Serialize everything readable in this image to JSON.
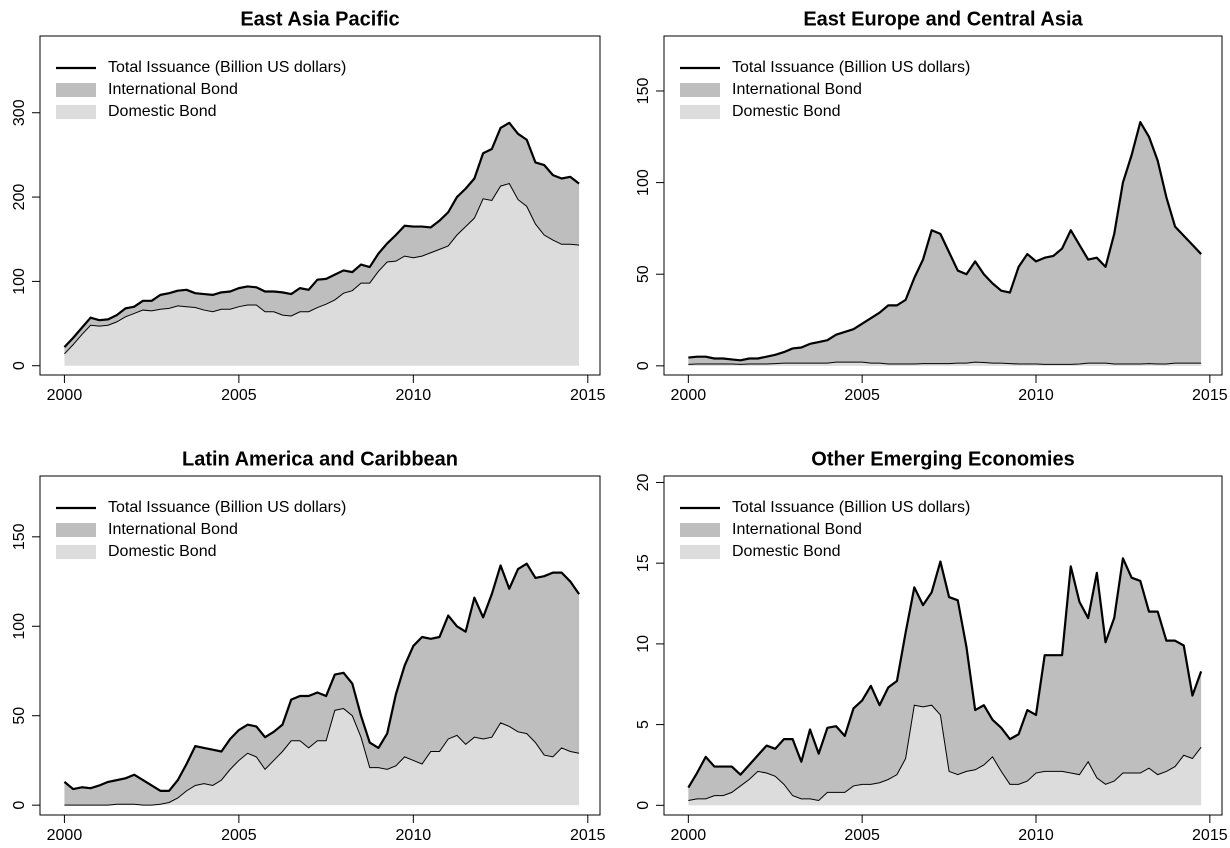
{
  "chart_data": [
    {
      "type": "area",
      "title": "East Asia Pacific",
      "legend": "topleft",
      "xlim": [
        1999.3,
        2015.35
      ],
      "xticks": [
        2000,
        2005,
        2010,
        2015
      ],
      "ylim": [
        -11,
        391
      ],
      "yticks": [
        0,
        100,
        200,
        300
      ],
      "x": [
        2000,
        2000.25,
        2000.5,
        2000.75,
        2001,
        2001.25,
        2001.5,
        2001.75,
        2002,
        2002.25,
        2002.5,
        2002.75,
        2003,
        2003.25,
        2003.5,
        2003.75,
        2004,
        2004.25,
        2004.5,
        2004.75,
        2005,
        2005.25,
        2005.5,
        2005.75,
        2006,
        2006.25,
        2006.5,
        2006.75,
        2007,
        2007.25,
        2007.5,
        2007.75,
        2008,
        2008.25,
        2008.5,
        2008.75,
        2009,
        2009.25,
        2009.5,
        2009.75,
        2010,
        2010.25,
        2010.5,
        2010.75,
        2011,
        2011.25,
        2011.5,
        2011.75,
        2012,
        2012.25,
        2012.5,
        2012.75,
        2013,
        2013.25,
        2013.5,
        2013.75,
        2014,
        2014.25,
        2014.5,
        2014.75
      ],
      "series": [
        {
          "name": "Total Issuance (Billion US dollars)",
          "color": "#000000",
          "mark": "line",
          "values": [
            22,
            33,
            45,
            57,
            54,
            55,
            60,
            68,
            70,
            77,
            77,
            84,
            86,
            89,
            90,
            86,
            85,
            84,
            87,
            88,
            92,
            94,
            93,
            88,
            88,
            87,
            85,
            92,
            90,
            102,
            103,
            108,
            113,
            111,
            120,
            117,
            133,
            145,
            155,
            166,
            165,
            165,
            164,
            172,
            182,
            200,
            210,
            222,
            252,
            257,
            282,
            288,
            275,
            268,
            241,
            238,
            226,
            222,
            224,
            216
          ]
        },
        {
          "name": "International Bond",
          "color": "#bebebe",
          "mark": "area",
          "values": [
            8,
            8,
            8,
            9,
            7,
            7,
            8,
            10,
            8,
            11,
            12,
            17,
            18,
            18,
            20,
            17,
            19,
            20,
            20,
            21,
            22,
            22,
            21,
            24,
            24,
            27,
            26,
            28,
            26,
            33,
            30,
            30,
            27,
            22,
            22,
            19,
            21,
            22,
            31,
            36,
            37,
            35,
            30,
            34,
            40,
            45,
            45,
            47,
            54,
            61,
            69,
            72,
            78,
            79,
            73,
            83,
            77,
            78,
            80,
            73
          ]
        },
        {
          "name": "Domestic Bond",
          "color": "#dcdcdc",
          "mark": "area",
          "values": [
            14,
            25,
            37,
            48,
            47,
            48,
            52,
            58,
            62,
            66,
            65,
            67,
            68,
            71,
            70,
            69,
            66,
            64,
            67,
            67,
            70,
            72,
            72,
            64,
            64,
            60,
            59,
            64,
            64,
            69,
            73,
            78,
            86,
            89,
            98,
            98,
            112,
            123,
            124,
            130,
            128,
            130,
            134,
            138,
            142,
            155,
            165,
            175,
            198,
            196,
            213,
            216,
            197,
            189,
            168,
            155,
            149,
            144,
            144,
            143
          ]
        }
      ]
    },
    {
      "type": "area",
      "title": "East Europe and Central Asia",
      "legend": "topleft",
      "xlim": [
        1999.3,
        2015.35
      ],
      "xticks": [
        2000,
        2005,
        2010,
        2015
      ],
      "ylim": [
        -5,
        180
      ],
      "yticks": [
        0,
        50,
        100,
        150
      ],
      "x": [
        2000,
        2000.25,
        2000.5,
        2000.75,
        2001,
        2001.25,
        2001.5,
        2001.75,
        2002,
        2002.25,
        2002.5,
        2002.75,
        2003,
        2003.25,
        2003.5,
        2003.75,
        2004,
        2004.25,
        2004.5,
        2004.75,
        2005,
        2005.25,
        2005.5,
        2005.75,
        2006,
        2006.25,
        2006.5,
        2006.75,
        2007,
        2007.25,
        2007.5,
        2007.75,
        2008,
        2008.25,
        2008.5,
        2008.75,
        2009,
        2009.25,
        2009.5,
        2009.75,
        2010,
        2010.25,
        2010.5,
        2010.75,
        2011,
        2011.25,
        2011.5,
        2011.75,
        2012,
        2012.25,
        2012.5,
        2012.75,
        2013,
        2013.25,
        2013.5,
        2013.75,
        2014,
        2014.25,
        2014.5,
        2014.75
      ],
      "series": [
        {
          "name": "Total Issuance (Billion US dollars)",
          "color": "#000000",
          "mark": "line",
          "values": [
            4.5,
            5,
            5,
            4,
            4,
            3.5,
            3,
            4,
            4,
            5,
            6,
            7.5,
            9.5,
            10,
            12,
            13,
            14,
            17,
            18.5,
            20,
            23,
            26,
            29,
            33,
            33,
            36,
            48,
            58,
            74,
            72,
            62,
            52,
            50,
            57,
            50,
            45,
            41,
            40,
            54,
            61,
            57,
            59,
            60,
            64,
            74,
            66,
            58,
            59,
            54,
            72,
            100,
            115,
            133,
            125,
            112,
            92,
            76,
            71,
            66,
            61
          ]
        },
        {
          "name": "International Bond",
          "color": "#bebebe",
          "mark": "area",
          "values": [
            3.7,
            4,
            4,
            3,
            3,
            2.5,
            2.2,
            3,
            3,
            4,
            4.8,
            6,
            8,
            8.5,
            10.5,
            11.5,
            12.5,
            15,
            16.5,
            18,
            21,
            24.5,
            27.5,
            32,
            32,
            35,
            47,
            56.8,
            72.8,
            70.8,
            60.8,
            50.5,
            48.5,
            55,
            48.2,
            43.5,
            39.5,
            38.8,
            53,
            60,
            56,
            58.2,
            59.2,
            63.2,
            73.2,
            65,
            56.5,
            57.5,
            52.5,
            71,
            99,
            114,
            132,
            123.8,
            111,
            91,
            74.5,
            69.5,
            64.5,
            59.5
          ]
        },
        {
          "name": "Domestic Bond",
          "color": "#dcdcdc",
          "mark": "area",
          "values": [
            0.8,
            1,
            1,
            1,
            1,
            1,
            0.8,
            1,
            1,
            1,
            1.2,
            1.5,
            1.5,
            1.5,
            1.5,
            1.5,
            1.5,
            2,
            2,
            2,
            2,
            1.5,
            1.5,
            1,
            1,
            1,
            1,
            1.2,
            1.2,
            1.2,
            1.2,
            1.5,
            1.5,
            2,
            1.8,
            1.5,
            1.5,
            1.2,
            1,
            1,
            1,
            0.8,
            0.8,
            0.8,
            0.8,
            1,
            1.5,
            1.5,
            1.5,
            1,
            1,
            1,
            1,
            1.2,
            1,
            1,
            1.5,
            1.5,
            1.5,
            1.5
          ]
        }
      ]
    },
    {
      "type": "area",
      "title": "Latin America and Caribbean",
      "legend": "topleft",
      "xlim": [
        1999.3,
        2015.35
      ],
      "xticks": [
        2000,
        2005,
        2010,
        2015
      ],
      "ylim": [
        -5.5,
        184
      ],
      "yticks": [
        0,
        50,
        100,
        150
      ],
      "x": [
        2000,
        2000.25,
        2000.5,
        2000.75,
        2001,
        2001.25,
        2001.5,
        2001.75,
        2002,
        2002.25,
        2002.5,
        2002.75,
        2003,
        2003.25,
        2003.5,
        2003.75,
        2004,
        2004.25,
        2004.5,
        2004.75,
        2005,
        2005.25,
        2005.5,
        2005.75,
        2006,
        2006.25,
        2006.5,
        2006.75,
        2007,
        2007.25,
        2007.5,
        2007.75,
        2008,
        2008.25,
        2008.5,
        2008.75,
        2009,
        2009.25,
        2009.5,
        2009.75,
        2010,
        2010.25,
        2010.5,
        2010.75,
        2011,
        2011.25,
        2011.5,
        2011.75,
        2012,
        2012.25,
        2012.5,
        2012.75,
        2013,
        2013.25,
        2013.5,
        2013.75,
        2014,
        2014.25,
        2014.5,
        2014.75
      ],
      "series": [
        {
          "name": "Total Issuance (Billion US dollars)",
          "color": "#000000",
          "mark": "line",
          "values": [
            13,
            9,
            10,
            9.5,
            11,
            13,
            14,
            15,
            17,
            14,
            11,
            8,
            8,
            14,
            23,
            33,
            32,
            31,
            30,
            37,
            42,
            45,
            44,
            38,
            41,
            45,
            59,
            61,
            61,
            63,
            61,
            73,
            74,
            68,
            50,
            35,
            32,
            40,
            62,
            78,
            89,
            94,
            93,
            94,
            106,
            100,
            97,
            116,
            105,
            118,
            134,
            121,
            132,
            135,
            127,
            128,
            130,
            130,
            125,
            118
          ]
        },
        {
          "name": "International Bond",
          "color": "#bebebe",
          "mark": "area",
          "values": [
            13,
            9,
            10,
            9.5,
            11,
            13,
            13.5,
            14.5,
            16.5,
            14,
            11,
            7.5,
            6.5,
            10,
            15,
            22,
            20,
            20,
            16,
            17,
            17,
            16,
            17,
            18,
            16,
            15,
            23,
            25,
            29,
            27,
            25,
            20,
            20,
            18,
            12,
            14,
            11,
            20,
            40,
            51,
            64,
            71,
            63,
            64,
            69,
            61,
            63,
            78,
            68,
            80,
            88,
            77,
            91,
            95,
            92,
            100,
            103,
            98,
            95,
            89
          ]
        },
        {
          "name": "Domestic Bond",
          "color": "#dcdcdc",
          "mark": "area",
          "values": [
            0,
            0,
            0,
            0,
            0,
            0,
            0.5,
            0.5,
            0.5,
            0,
            0,
            0.5,
            1.5,
            4,
            8,
            11,
            12,
            11,
            14,
            20,
            25,
            29,
            27,
            20,
            25,
            30,
            36,
            36,
            32,
            36,
            36,
            53,
            54,
            50,
            38,
            21,
            21,
            20,
            22,
            27,
            25,
            23,
            30,
            30,
            37,
            39,
            34,
            38,
            37,
            38,
            46,
            44,
            41,
            40,
            35,
            28,
            27,
            32,
            30,
            29
          ]
        }
      ]
    },
    {
      "type": "area",
      "title": "Other Emerging Economies",
      "legend": "topleft",
      "xlim": [
        1999.3,
        2015.35
      ],
      "xticks": [
        2000,
        2005,
        2010,
        2015
      ],
      "ylim": [
        -0.6,
        20.4
      ],
      "yticks": [
        0,
        5,
        10,
        15,
        20
      ],
      "x": [
        2000,
        2000.25,
        2000.5,
        2000.75,
        2001,
        2001.25,
        2001.5,
        2001.75,
        2002,
        2002.25,
        2002.5,
        2002.75,
        2003,
        2003.25,
        2003.5,
        2003.75,
        2004,
        2004.25,
        2004.5,
        2004.75,
        2005,
        2005.25,
        2005.5,
        2005.75,
        2006,
        2006.25,
        2006.5,
        2006.75,
        2007,
        2007.25,
        2007.5,
        2007.75,
        2008,
        2008.25,
        2008.5,
        2008.75,
        2009,
        2009.25,
        2009.5,
        2009.75,
        2010,
        2010.25,
        2010.5,
        2010.75,
        2011,
        2011.25,
        2011.5,
        2011.75,
        2012,
        2012.25,
        2012.5,
        2012.75,
        2013,
        2013.25,
        2013.5,
        2013.75,
        2014,
        2014.25,
        2014.5,
        2014.75
      ],
      "series": [
        {
          "name": "Total Issuance (Billion US dollars)",
          "color": "#000000",
          "mark": "line",
          "values": [
            1.1,
            2.0,
            3.0,
            2.4,
            2.4,
            2.4,
            1.9,
            2.5,
            3.1,
            3.7,
            3.5,
            4.1,
            4.1,
            2.7,
            4.7,
            3.2,
            4.8,
            4.9,
            4.3,
            6.0,
            6.5,
            7.4,
            6.2,
            7.3,
            7.7,
            10.7,
            13.5,
            12.4,
            13.2,
            15.1,
            12.9,
            12.7,
            9.8,
            5.9,
            6.2,
            5.3,
            4.8,
            4.1,
            4.4,
            5.9,
            5.6,
            9.3,
            9.3,
            9.3,
            14.8,
            12.6,
            11.6,
            14.4,
            10.1,
            11.6,
            15.3,
            14.1,
            13.9,
            12.0,
            12.0,
            10.2,
            10.2,
            9.9,
            6.8,
            8.3
          ]
        },
        {
          "name": "International Bond",
          "color": "#bebebe",
          "mark": "area",
          "values": [
            0.8,
            1.6,
            2.6,
            1.8,
            1.8,
            1.6,
            0.7,
            0.9,
            1.0,
            1.7,
            1.7,
            2.8,
            3.5,
            2.3,
            4.3,
            2.9,
            4.0,
            4.1,
            3.5,
            4.8,
            5.2,
            6.1,
            4.8,
            5.7,
            5.8,
            7.8,
            7.3,
            6.3,
            7.0,
            9.5,
            10.8,
            10.8,
            7.7,
            3.7,
            3.7,
            2.3,
            2.7,
            2.8,
            3.1,
            4.4,
            3.6,
            7.2,
            7.2,
            7.2,
            12.8,
            10.7,
            8.9,
            12.7,
            8.8,
            10.1,
            13.3,
            12.1,
            11.9,
            9.7,
            10.1,
            8.1,
            7.8,
            6.8,
            3.9,
            4.7
          ]
        },
        {
          "name": "Domestic Bond",
          "color": "#dcdcdc",
          "mark": "area",
          "values": [
            0.3,
            0.4,
            0.4,
            0.6,
            0.6,
            0.8,
            1.2,
            1.6,
            2.1,
            2.0,
            1.8,
            1.3,
            0.6,
            0.4,
            0.4,
            0.3,
            0.8,
            0.8,
            0.8,
            1.2,
            1.3,
            1.3,
            1.4,
            1.6,
            1.9,
            2.9,
            6.2,
            6.1,
            6.2,
            5.6,
            2.1,
            1.9,
            2.1,
            2.2,
            2.5,
            3.0,
            2.1,
            1.3,
            1.3,
            1.5,
            2.0,
            2.1,
            2.1,
            2.1,
            2.0,
            1.9,
            2.7,
            1.7,
            1.3,
            1.5,
            2.0,
            2.0,
            2.0,
            2.3,
            1.9,
            2.1,
            2.4,
            3.1,
            2.9,
            3.6
          ]
        }
      ]
    }
  ]
}
